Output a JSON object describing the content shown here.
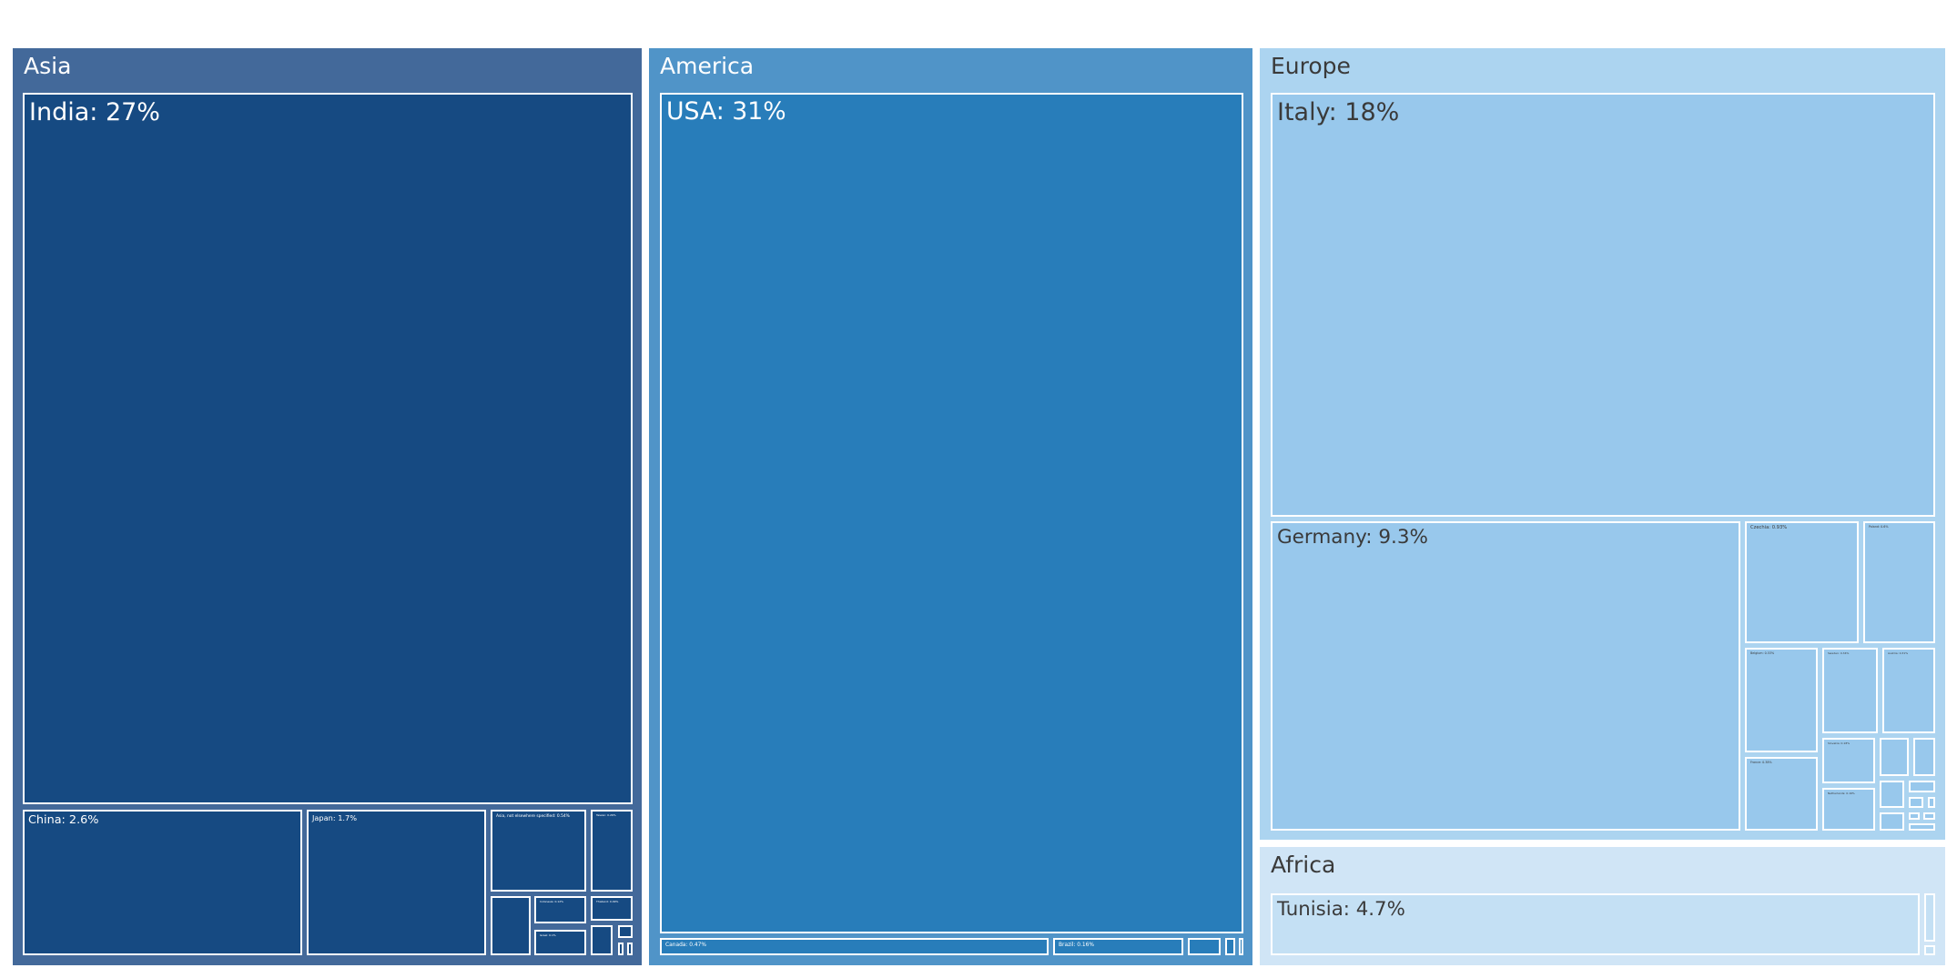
{
  "chart_data": {
    "type": "treemap",
    "value_format": "percent share",
    "colors": {
      "Asia_header": "#43699a",
      "Asia_leaf": "#164a82",
      "America_header": "#5094c8",
      "America_leaf": "#287dba",
      "Europe_header": "#acd4f0",
      "Europe_leaf": "#98c8ec",
      "Africa_header": "#d0e5f6",
      "Africa_leaf": "#c4e0f4",
      "border": "#ffffff"
    },
    "groups": [
      {
        "name": "Asia",
        "items": [
          {
            "label": "India: 27%",
            "name": "India",
            "value": 27
          },
          {
            "label": "China: 2.6%",
            "name": "China",
            "value": 2.6
          },
          {
            "label": "Japan: 1.7%",
            "name": "Japan",
            "value": 1.7
          },
          {
            "label": "Asia, not elsewhere specified: 0.54%",
            "name": "Asia, not elsewhere specified",
            "value": 0.54
          },
          {
            "label": "Taiwan: 0.26%",
            "name": "Taiwan",
            "value": 0.26
          },
          {
            "label": "",
            "name": "",
            "value": 0.2
          },
          {
            "label": "Indonesia: 0.12%",
            "name": "Indonesia",
            "value": 0.12
          },
          {
            "label": "Thailand: 0.09%",
            "name": "Thailand",
            "value": 0.09
          },
          {
            "label": "Israel: 0.1%",
            "name": "Israel",
            "value": 0.1
          },
          {
            "label": "",
            "name": "",
            "value": 0.05
          },
          {
            "label": "",
            "name": "",
            "value": 0.02
          },
          {
            "label": "",
            "name": "",
            "value": 0.015
          },
          {
            "label": "",
            "name": "",
            "value": 0.012
          }
        ]
      },
      {
        "name": "America",
        "items": [
          {
            "label": "USA: 31%",
            "name": "USA",
            "value": 31
          },
          {
            "label": "Canada: 0.47%",
            "name": "Canada",
            "value": 0.47
          },
          {
            "label": "Brazil: 0.16%",
            "name": "Brazil",
            "value": 0.16
          },
          {
            "label": "",
            "name": "",
            "value": 0.04
          },
          {
            "label": "",
            "name": "",
            "value": 0.015
          },
          {
            "label": "",
            "name": "",
            "value": 0.008
          }
        ]
      },
      {
        "name": "Europe",
        "items": [
          {
            "label": "Italy: 18%",
            "name": "Italy",
            "value": 18
          },
          {
            "label": "Germany: 9.3%",
            "name": "Germany",
            "value": 9.3
          },
          {
            "label": "Czechia: 0.93%",
            "name": "Czechia",
            "value": 0.93
          },
          {
            "label": "Poland: 0.6%",
            "name": "Poland",
            "value": 0.6
          },
          {
            "label": "Belgium: 0.53%",
            "name": "Belgium",
            "value": 0.53
          },
          {
            "label": "Sweden: 0.34%",
            "name": "Sweden",
            "value": 0.34
          },
          {
            "label": "Austria: 0.31%",
            "name": "Austria",
            "value": 0.31
          },
          {
            "label": "France: 0.38%",
            "name": "France",
            "value": 0.38
          },
          {
            "label": "Slovakia: 0.18%",
            "name": "Slovakia",
            "value": 0.18
          },
          {
            "label": "Netherlands: 0.16%",
            "name": "Netherlands",
            "value": 0.16
          },
          {
            "label": "",
            "name": "",
            "value": 0.08
          },
          {
            "label": "",
            "name": "",
            "value": 0.06
          },
          {
            "label": "",
            "name": "",
            "value": 0.05
          },
          {
            "label": "",
            "name": "",
            "value": 0.04
          },
          {
            "label": "",
            "name": "",
            "value": 0.03
          },
          {
            "label": "",
            "name": "",
            "value": 0.02
          },
          {
            "label": "",
            "name": "",
            "value": 0.015
          },
          {
            "label": "",
            "name": "",
            "value": 0.012
          },
          {
            "label": "",
            "name": "",
            "value": 0.01
          },
          {
            "label": "",
            "name": "",
            "value": 0.008
          }
        ]
      },
      {
        "name": "Africa",
        "items": [
          {
            "label": "Tunisia: 4.7%",
            "name": "Tunisia",
            "value": 4.7
          },
          {
            "label": "",
            "name": "",
            "value": 0.15
          },
          {
            "label": "",
            "name": "",
            "value": 0.03
          }
        ]
      }
    ]
  }
}
